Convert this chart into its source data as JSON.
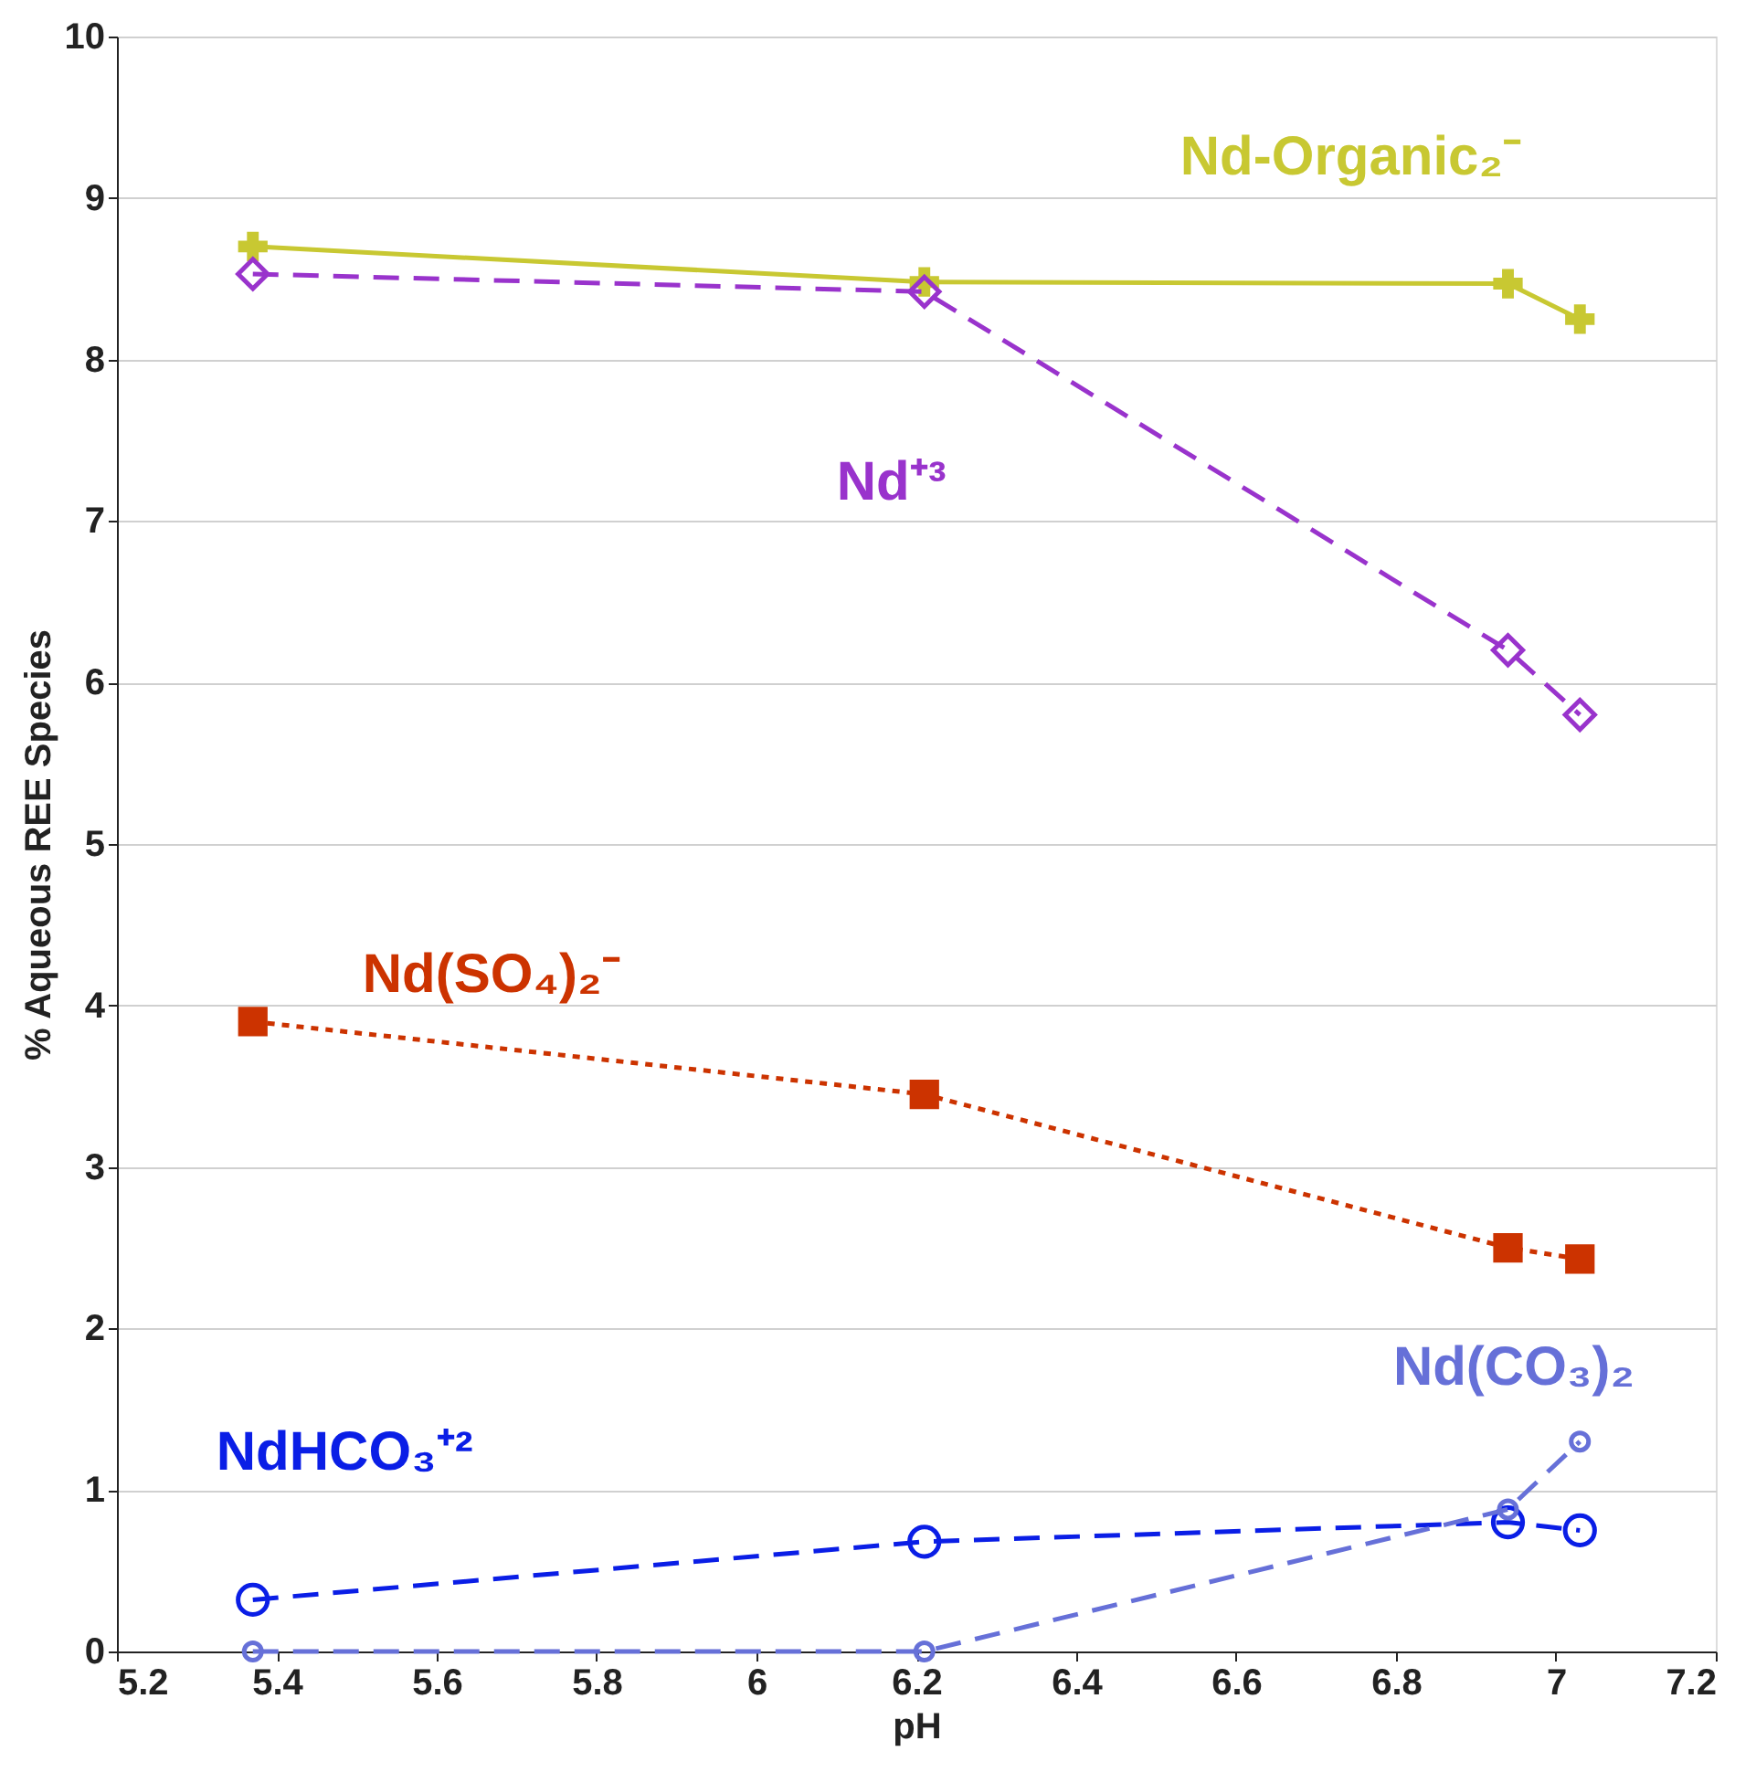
{
  "chart_data": {
    "type": "line",
    "xlabel": "pH",
    "ylabel": "% Aqueous REE Species",
    "x": [
      5.37,
      6.21,
      6.94,
      7.03
    ],
    "series": [
      {
        "name": "Nd-Organic₂⁻",
        "color": "#c8c832",
        "values": [
          8.7,
          8.48,
          8.47,
          8.25
        ],
        "marker": "cross",
        "line_style": "solid"
      },
      {
        "name": "Nd⁺³",
        "color": "#9933cc",
        "values": [
          8.53,
          8.42,
          6.2,
          5.8
        ],
        "marker": "diamond",
        "line_style": "dashed"
      },
      {
        "name": "Nd(SO₄)₂⁻",
        "color": "#cc3300",
        "values": [
          3.9,
          3.45,
          2.5,
          2.43
        ],
        "marker": "square",
        "line_style": "dotted"
      },
      {
        "name": "NdHCO₃⁺²",
        "color": "#0a1ee6",
        "values": [
          0.32,
          0.68,
          0.8,
          0.75
        ],
        "marker": "circle",
        "line_style": "dashed"
      },
      {
        "name": "Nd(CO₃)₂",
        "color": "#6670d8",
        "values": [
          0,
          0,
          0.88,
          1.3
        ],
        "marker": "circle",
        "line_style": "dashed"
      }
    ],
    "xlim": [
      5.2,
      7.2
    ],
    "xticks": [
      5.2,
      5.4,
      5.6,
      5.8,
      6,
      6.2,
      6.4,
      6.6,
      6.8,
      7,
      7.2
    ],
    "ylim": [
      0,
      10
    ],
    "yticks": [
      0,
      1,
      2,
      3,
      4,
      5,
      6,
      7,
      8,
      9,
      10
    ],
    "grid": "y",
    "legend": false
  }
}
